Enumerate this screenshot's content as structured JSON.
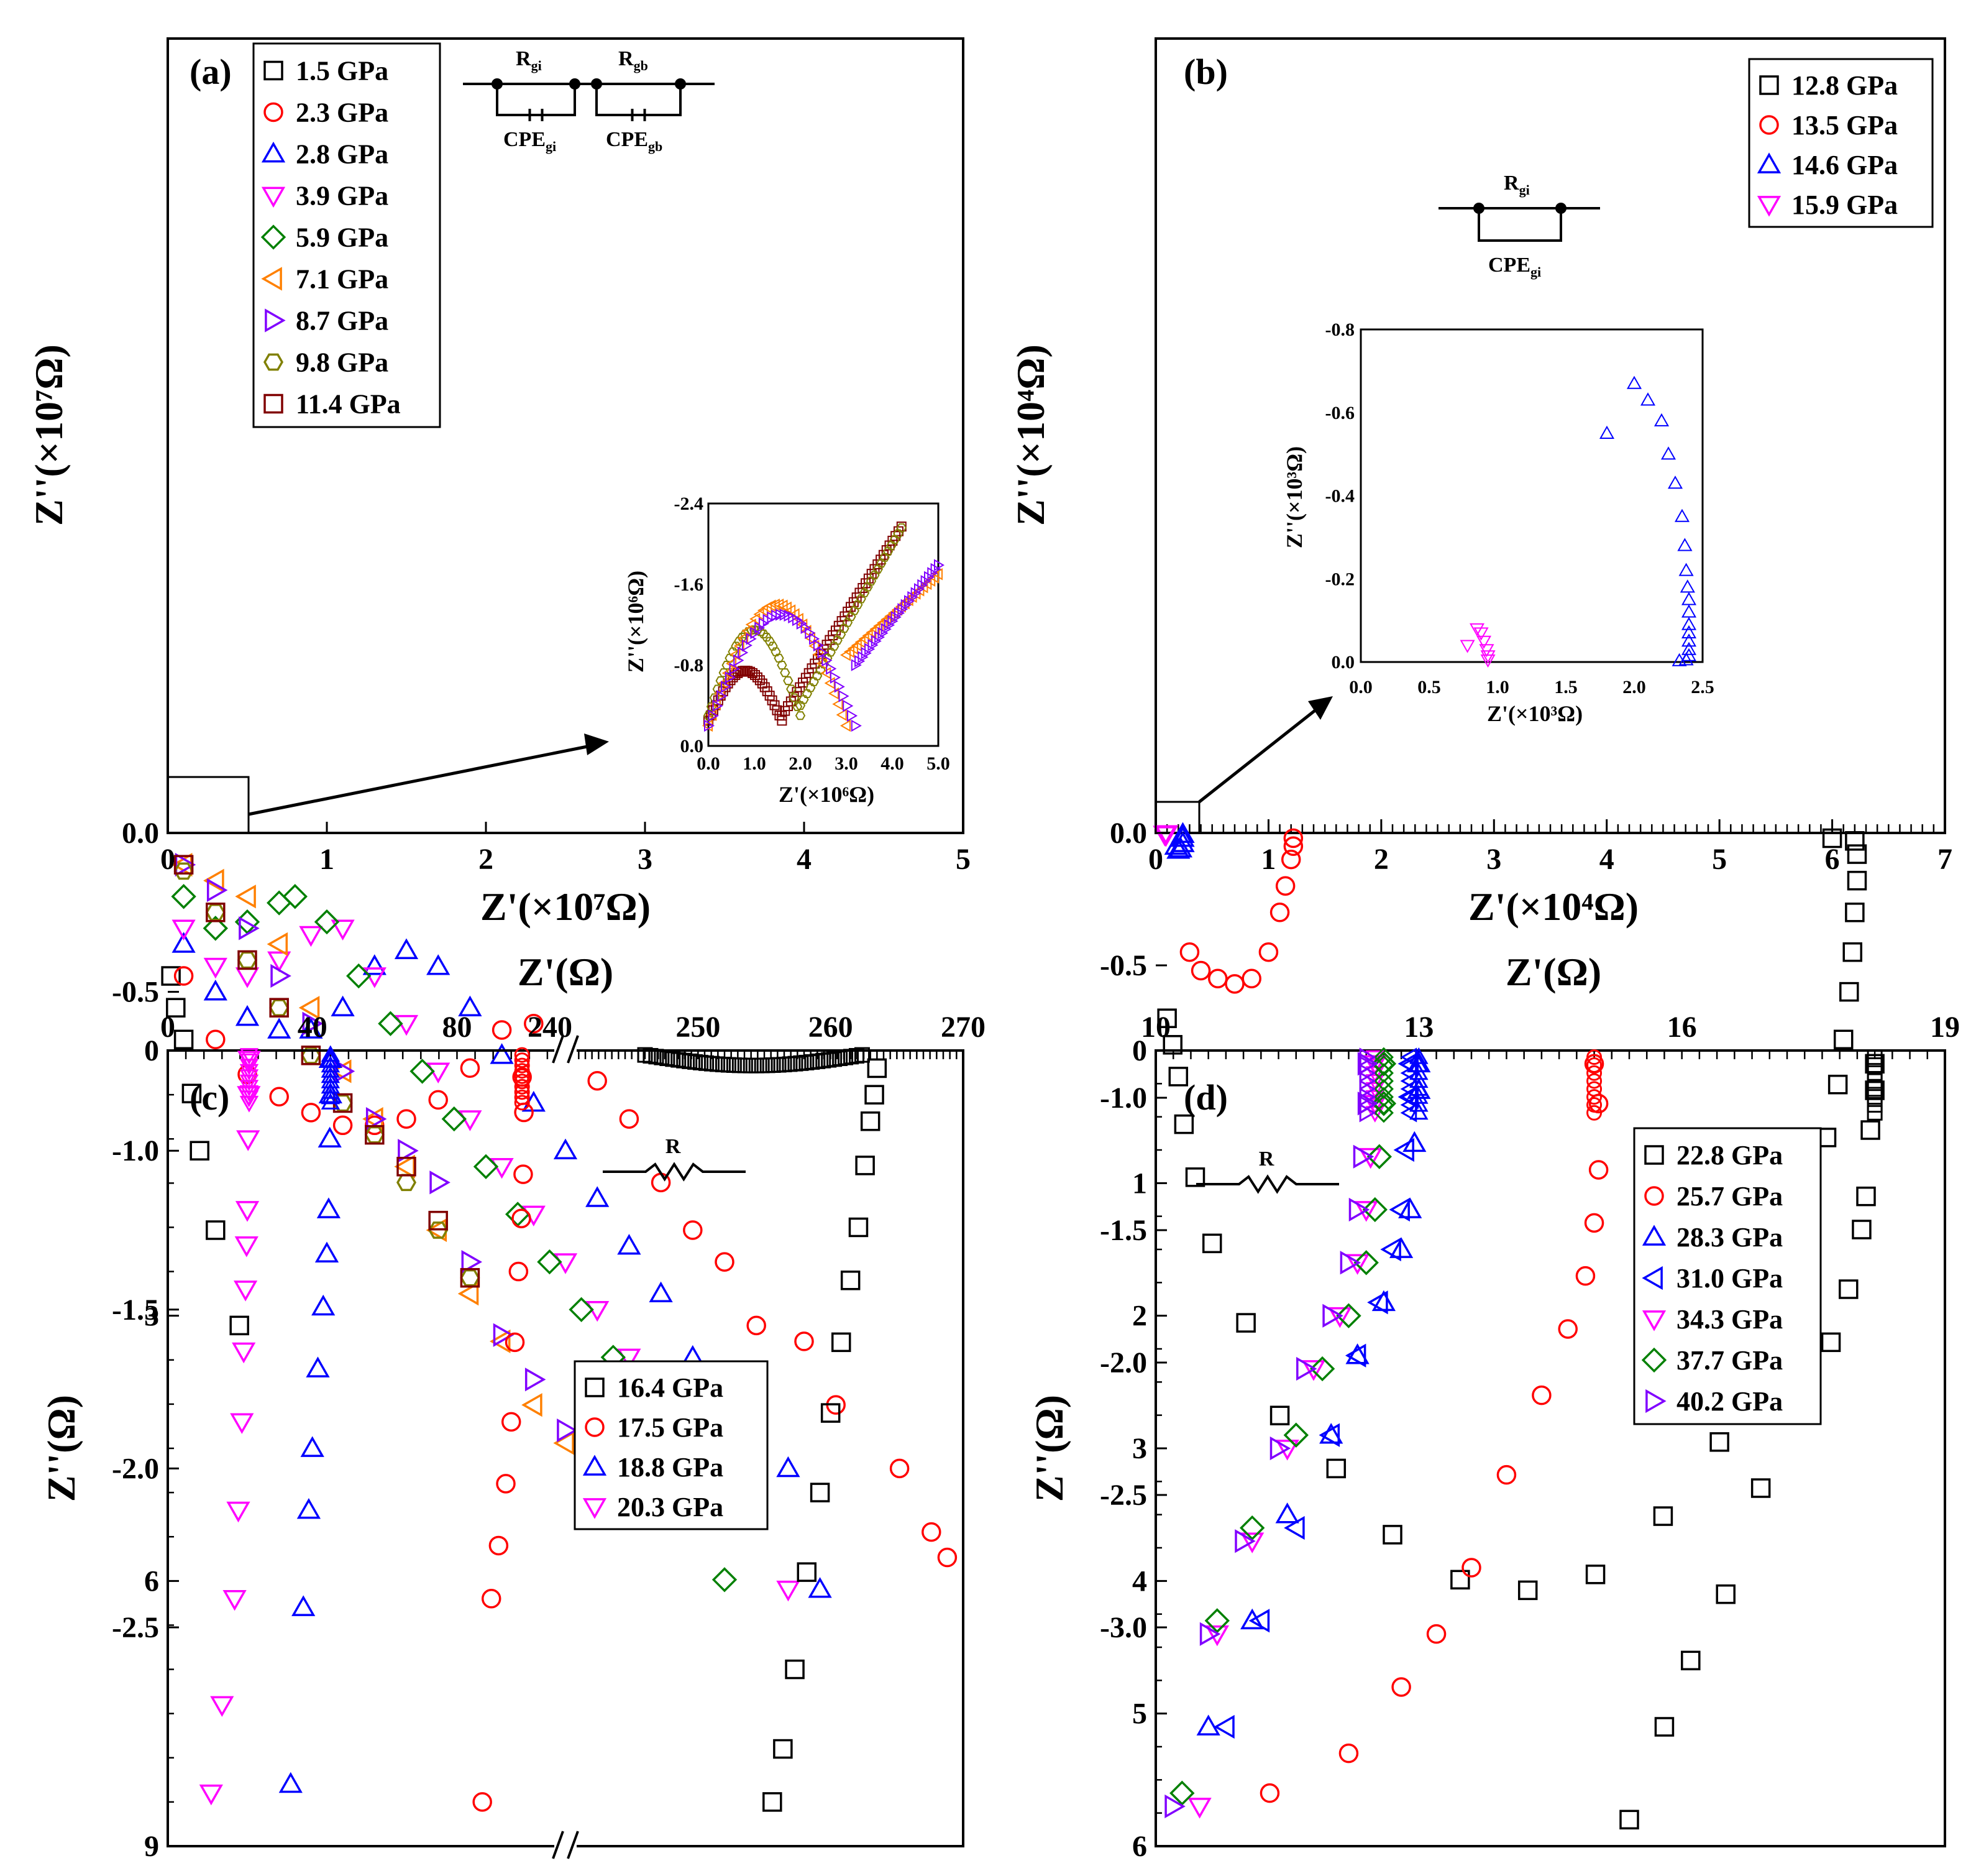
{
  "panels": {
    "a": {
      "label": "(a)",
      "xlabel": "Z'(×10⁷Ω)",
      "ylabel": "Z''(×10⁷Ω)",
      "xticks": [
        "0",
        "1",
        "2",
        "3",
        "4",
        "5"
      ],
      "yticks": [
        "0.0",
        "-0.5",
        "-1.0",
        "-1.5",
        "-2.0",
        "-2.5"
      ],
      "xlim": [
        0,
        5
      ],
      "ylim": [
        0,
        -2.5
      ],
      "legend": [
        "1.5 GPa",
        "2.3 GPa",
        "2.8 GPa",
        "3.9 GPa",
        "5.9 GPa",
        "7.1 GPa",
        "8.7 GPa",
        "9.8 GPa",
        "11.4 GPa"
      ],
      "circuit": {
        "r1": "R",
        "r1_sub": "gi",
        "r2": "R",
        "r2_sub": "gb",
        "c1": "CPE",
        "c1_sub": "gi",
        "c2": "CPE",
        "c2_sub": "gb"
      },
      "inset": {
        "xlabel": "Z'(×10⁶Ω)",
        "ylabel": "Z''(×10⁶Ω)",
        "xticks": [
          "0.0",
          "1.0",
          "2.0",
          "3.0",
          "4.0",
          "5.0"
        ],
        "yticks": [
          "0.0",
          "-0.8",
          "-1.6",
          "-2.4"
        ]
      }
    },
    "b": {
      "label": "(b)",
      "xlabel": "Z'(×10⁴Ω)",
      "ylabel": "Z''(×10⁴Ω)",
      "xticks": [
        "0",
        "1",
        "2",
        "3",
        "4",
        "5",
        "6",
        "7"
      ],
      "yticks": [
        "0.0",
        "-0.5",
        "-1.0",
        "-1.5",
        "-2.0",
        "-2.5",
        "-3.0"
      ],
      "legend": [
        "12.8 GPa",
        "13.5 GPa",
        "14.6 GPa",
        "15.9 GPa"
      ],
      "circuit": {
        "r1": "R",
        "r1_sub": "gi",
        "c1": "CPE",
        "c1_sub": "gi"
      },
      "inset": {
        "xlabel": "Z'(×10³Ω)",
        "ylabel": "Z''(×10³Ω)",
        "xticks": [
          "0.0",
          "0.5",
          "1.0",
          "1.5",
          "2.0",
          "2.5"
        ],
        "yticks": [
          "0.0",
          "-0.2",
          "-0.4",
          "-0.6",
          "-0.8"
        ]
      }
    },
    "c": {
      "label": "(c)",
      "xlabel": "Z'(Ω)",
      "ylabel": "Z''(Ω)",
      "xticks_left": [
        "0",
        "40",
        "80"
      ],
      "xticks_right": [
        "240",
        "250",
        "260",
        "270"
      ],
      "yticks": [
        "0",
        "3",
        "6",
        "9"
      ],
      "legend": [
        "16.4 GPa",
        "17.5 GPa",
        "18.8 GPa",
        "20.3 GPa"
      ],
      "circuit": {
        "r1": "R"
      }
    },
    "d": {
      "label": "(d)",
      "xlabel": "Z'(Ω)",
      "ylabel": "Z''(Ω)",
      "xticks": [
        "10",
        "13",
        "16",
        "19"
      ],
      "yticks": [
        "0",
        "1",
        "2",
        "3",
        "4",
        "5",
        "6"
      ],
      "legend": [
        "22.8 GPa",
        "25.7 GPa",
        "28.3 GPa",
        "31.0 GPa",
        "34.3 GPa",
        "37.7 GPa",
        "40.2 GPa"
      ],
      "circuit": {
        "r1": "R"
      }
    }
  },
  "chart_data": [
    {
      "type": "scatter",
      "title": "(a)",
      "xlabel": "Z'(×10⁷Ω)",
      "ylabel": "Z''(×10⁷Ω)",
      "xlim": [
        0,
        5
      ],
      "ylim": [
        0,
        -2.5
      ],
      "series": [
        {
          "name": "1.5 GPa",
          "x": [
            0.02,
            0.05,
            0.1,
            0.15,
            0.2,
            0.3,
            0.45
          ],
          "y": [
            -0.45,
            -0.55,
            -0.65,
            -0.82,
            -1.0,
            -1.25,
            -1.55
          ]
        },
        {
          "name": "2.3 GPa",
          "x": [
            0.1,
            0.3,
            0.5,
            0.7,
            0.9,
            1.1,
            1.3,
            1.5,
            1.7,
            1.9,
            2.1,
            2.3,
            2.5,
            2.7,
            2.9,
            3.1,
            3.3,
            3.5,
            3.7,
            4.0,
            4.2,
            4.6,
            4.8,
            4.9
          ],
          "y": [
            -0.45,
            -0.65,
            -0.76,
            -0.83,
            -0.88,
            -0.92,
            -0.92,
            -0.9,
            -0.84,
            -0.74,
            -0.62,
            -0.6,
            -0.68,
            -0.78,
            -0.9,
            -1.1,
            -1.25,
            -1.35,
            -1.55,
            -1.6,
            -1.8,
            -2.0,
            -2.2,
            -2.28
          ]
        },
        {
          "name": "2.8 GPa",
          "x": [
            0.1,
            0.3,
            0.5,
            0.7,
            0.9,
            1.1,
            1.3,
            1.5,
            1.7,
            1.9,
            2.1,
            2.3,
            2.5,
            2.7,
            2.9,
            3.1,
            3.3,
            3.6,
            3.9,
            4.1
          ],
          "y": [
            -0.35,
            -0.5,
            -0.58,
            -0.62,
            -0.62,
            -0.55,
            -0.42,
            -0.37,
            -0.42,
            -0.55,
            -0.7,
            -0.85,
            -1.0,
            -1.15,
            -1.3,
            -1.45,
            -1.65,
            -1.9,
            -2.0,
            -2.38
          ]
        },
        {
          "name": "3.9 GPa",
          "x": [
            0.1,
            0.3,
            0.5,
            0.7,
            0.9,
            1.1,
            1.3,
            1.5,
            1.7,
            1.9,
            2.1,
            2.3,
            2.5,
            2.7,
            2.9,
            3.1,
            3.3,
            3.6,
            3.9
          ],
          "y": [
            -0.3,
            -0.42,
            -0.45,
            -0.4,
            -0.32,
            -0.3,
            -0.45,
            -0.6,
            -0.75,
            -0.9,
            -1.05,
            -1.2,
            -1.35,
            -1.5,
            -1.65,
            -1.75,
            -1.88,
            -2.15,
            -2.38
          ]
        },
        {
          "name": "5.9 GPa",
          "x": [
            0.1,
            0.3,
            0.5,
            0.7,
            0.8,
            1.0,
            1.2,
            1.4,
            1.6,
            1.8,
            2.0,
            2.2,
            2.4,
            2.6,
            2.8,
            3.0,
            3.2,
            3.5
          ],
          "y": [
            -0.2,
            -0.3,
            -0.28,
            -0.22,
            -0.2,
            -0.28,
            -0.45,
            -0.6,
            -0.75,
            -0.9,
            -1.05,
            -1.2,
            -1.35,
            -1.5,
            -1.65,
            -1.85,
            -2.05,
            -2.35
          ]
        },
        {
          "name": "7.1 GPa",
          "x": [
            0.1,
            0.3,
            0.5,
            0.7,
            0.9,
            1.1,
            1.3,
            1.5,
            1.7,
            1.9,
            2.1,
            2.3,
            2.5
          ],
          "y": [
            -0.1,
            -0.15,
            -0.2,
            -0.35,
            -0.55,
            -0.75,
            -0.9,
            -1.05,
            -1.25,
            -1.45,
            -1.6,
            -1.8,
            -1.92
          ]
        },
        {
          "name": "8.7 GPa",
          "x": [
            0.1,
            0.3,
            0.5,
            0.7,
            0.9,
            1.1,
            1.3,
            1.5,
            1.7,
            1.9,
            2.1,
            2.3,
            2.5
          ],
          "y": [
            -0.1,
            -0.18,
            -0.3,
            -0.45,
            -0.6,
            -0.75,
            -0.9,
            -1.0,
            -1.1,
            -1.35,
            -1.58,
            -1.72,
            -1.88
          ]
        },
        {
          "name": "9.8 GPa",
          "x": [
            0.1,
            0.3,
            0.5,
            0.7,
            0.9,
            1.1,
            1.3,
            1.5,
            1.7,
            1.9
          ],
          "y": [
            -0.12,
            -0.25,
            -0.4,
            -0.55,
            -0.7,
            -0.85,
            -0.95,
            -1.1,
            -1.25,
            -1.4
          ]
        },
        {
          "name": "11.4 GPa",
          "x": [
            0.1,
            0.3,
            0.5,
            0.7,
            0.9,
            1.1,
            1.3,
            1.5,
            1.7,
            1.9
          ],
          "y": [
            -0.1,
            -0.25,
            -0.4,
            -0.55,
            -0.7,
            -0.85,
            -0.95,
            -1.05,
            -1.22,
            -1.4
          ]
        }
      ]
    },
    {
      "type": "scatter",
      "title": "(b)",
      "xlabel": "Z'(×10⁴Ω)",
      "ylabel": "Z''(×10⁴Ω)",
      "xlim": [
        0,
        7
      ],
      "ylim": [
        0,
        -3.0
      ],
      "series": [
        {
          "name": "12.8 GPa",
          "x": [
            0.1,
            0.15,
            0.2,
            0.25,
            0.35,
            0.5,
            0.8,
            1.1,
            1.6,
            2.1,
            2.7,
            3.3,
            3.9,
            4.5,
            5.0,
            5.3,
            5.6,
            5.8,
            5.95,
            6.05,
            6.1,
            6.15,
            6.18,
            6.2,
            6.22,
            6.22,
            6.2,
            6.0
          ],
          "y": [
            -0.7,
            -0.8,
            -0.92,
            -1.1,
            -1.3,
            -1.55,
            -1.85,
            -2.2,
            -2.4,
            -2.65,
            -2.82,
            -2.86,
            -2.8,
            -2.58,
            -2.3,
            -2.0,
            -1.68,
            -1.4,
            -1.15,
            -0.95,
            -0.78,
            -0.6,
            -0.45,
            -0.3,
            -0.18,
            -0.08,
            -0.03,
            -0.02
          ]
        },
        {
          "name": "13.5 GPa",
          "x": [
            0.3,
            0.4,
            0.55,
            0.7,
            0.85,
            1.0,
            1.1,
            1.15,
            1.2,
            1.22,
            1.22
          ],
          "y": [
            -0.45,
            -0.52,
            -0.55,
            -0.57,
            -0.55,
            -0.45,
            -0.3,
            -0.2,
            -0.1,
            -0.05,
            -0.02
          ]
        },
        {
          "name": "14.6 GPa",
          "x": [
            0.18,
            0.2,
            0.22,
            0.24,
            0.24,
            0.24
          ],
          "y": [
            -0.05,
            -0.065,
            -0.06,
            -0.04,
            -0.02,
            -0.005
          ]
        },
        {
          "name": "15.9 GPa",
          "x": [
            0.08,
            0.09,
            0.095
          ],
          "y": [
            -0.005,
            -0.007,
            -0.003
          ]
        }
      ]
    },
    {
      "type": "scatter",
      "title": "(c)",
      "xlabel": "Z'(Ω)",
      "ylabel": "Z''(Ω)",
      "ylim": [
        0,
        9
      ],
      "series": [
        {
          "name": "16.4 GPa",
          "x": [
            263.5,
            263.3,
            263,
            262.6,
            262.1,
            261.5,
            260.8,
            260,
            259.2,
            258.2,
            257.3,
            256.4,
            255.6
          ],
          "y": [
            0.2,
            0.5,
            0.8,
            1.3,
            2.0,
            2.6,
            3.3,
            4.1,
            5.0,
            5.9,
            7.0,
            7.9,
            8.5
          ]
        },
        {
          "name": "17.5 GPa",
          "x": [
            98,
            98.5,
            98.3,
            97.8,
            97,
            96,
            95,
            93.5,
            91.5,
            89.5,
            87
          ],
          "y": [
            0.3,
            0.7,
            1.4,
            1.9,
            2.5,
            3.3,
            4.2,
            4.9,
            5.6,
            6.2,
            8.5
          ]
        },
        {
          "name": "18.8 GPa",
          "x": [
            45,
            45,
            44.8,
            44.5,
            44,
            43,
            41.5,
            40,
            39,
            37.5,
            34
          ],
          "y": [
            0.1,
            0.5,
            1.0,
            1.8,
            2.3,
            2.9,
            3.6,
            4.5,
            5.2,
            6.3,
            8.3
          ]
        },
        {
          "name": "20.3 GPa",
          "x": [
            22.5,
            22.4,
            22.2,
            22,
            21.8,
            21.5,
            21,
            20.5,
            19.5,
            18.5,
            15,
            12
          ],
          "y": [
            0.1,
            0.5,
            1.0,
            1.8,
            2.2,
            2.7,
            3.4,
            4.2,
            5.2,
            6.2,
            7.4,
            8.4
          ]
        }
      ]
    },
    {
      "type": "scatter",
      "title": "(d)",
      "xlabel": "Z'(Ω)",
      "ylabel": "Z''(Ω)",
      "xlim": [
        10,
        19
      ],
      "ylim": [
        0,
        6
      ],
      "series": [
        {
          "name": "22.8 GPa",
          "x": [
            18.2,
            18.2,
            18.15,
            18.1,
            18.05,
            17.9,
            17.7,
            17.3,
            16.9,
            16.5,
            16.1,
            15.8,
            15.4
          ],
          "y": [
            0.1,
            0.3,
            0.6,
            1.1,
            1.35,
            1.8,
            2.2,
            2.7,
            3.3,
            4.1,
            4.6,
            5.1,
            5.8
          ]
        },
        {
          "name": "25.7 GPa",
          "x": [
            15,
            15.05,
            15.05,
            15,
            14.9,
            14.7,
            14.4,
            14.0,
            13.6,
            13.2,
            12.8,
            12.2,
            11.3
          ],
          "y": [
            0.1,
            0.4,
            0.9,
            1.3,
            1.7,
            2.1,
            2.6,
            3.2,
            3.9,
            4.4,
            4.8,
            5.3,
            5.6
          ]
        },
        {
          "name": "28.3 GPa",
          "x": [
            13,
            13,
            12.95,
            12.9,
            12.8,
            12.6,
            12.3,
            12.0,
            11.5,
            11.1,
            10.6
          ],
          "y": [
            0.1,
            0.3,
            0.7,
            1.2,
            1.5,
            1.9,
            2.3,
            2.9,
            3.5,
            4.3,
            5.1
          ]
        },
        {
          "name": "31.0 GPa",
          "x": [
            12.9,
            12.9,
            12.85,
            12.8,
            12.7,
            12.55,
            12.3,
            12.0,
            11.6,
            11.2,
            10.8
          ],
          "y": [
            0.1,
            0.35,
            0.75,
            1.2,
            1.5,
            1.9,
            2.3,
            2.9,
            3.6,
            4.3,
            5.1
          ]
        },
        {
          "name": "34.3 GPa",
          "x": [
            12.5,
            12.5,
            12.45,
            12.4,
            12.3,
            12.1,
            11.8,
            11.5,
            11.1,
            10.7,
            10.5
          ],
          "y": [
            0.1,
            0.4,
            0.8,
            1.2,
            1.6,
            2.0,
            2.4,
            3.0,
            3.7,
            4.4,
            5.7
          ]
        },
        {
          "name": "37.7 GPa",
          "x": [
            12.6,
            12.6,
            12.55,
            12.5,
            12.4,
            12.2,
            11.9,
            11.6,
            11.1,
            10.7,
            10.3
          ],
          "y": [
            0.1,
            0.4,
            0.8,
            1.2,
            1.6,
            2.0,
            2.4,
            2.9,
            3.6,
            4.3,
            5.6
          ]
        },
        {
          "name": "40.2 GPa",
          "x": [
            12.4,
            12.4,
            12.35,
            12.3,
            12.2,
            12.0,
            11.7,
            11.4,
            11.0,
            10.6,
            10.2
          ],
          "y": [
            0.1,
            0.4,
            0.8,
            1.2,
            1.6,
            2.0,
            2.4,
            3.0,
            3.7,
            4.4,
            5.7
          ]
        }
      ]
    }
  ],
  "colors": {
    "black": "#000000",
    "red": "#ff0000",
    "blue": "#0000ff",
    "magenta": "#ff00ff",
    "green": "#008000",
    "orange": "#ff8000",
    "purple": "#8000ff",
    "olive": "#808000",
    "maroon": "#800000"
  }
}
